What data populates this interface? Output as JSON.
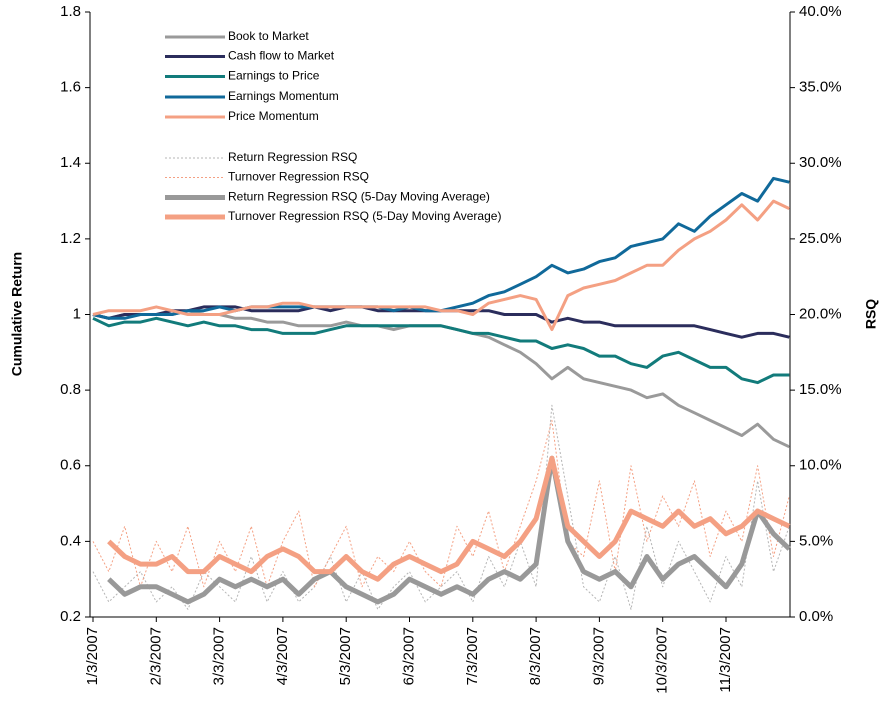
{
  "chart_data": {
    "type": "line",
    "ylabel": "Cumulative Return",
    "y2label": "RSQ",
    "legend": "upper left",
    "grid": false,
    "categories": [
      "1/3/2007",
      null,
      null,
      null,
      "2/3/2007",
      null,
      null,
      null,
      "3/3/2007",
      null,
      null,
      null,
      "4/3/2007",
      null,
      null,
      null,
      "5/3/2007",
      null,
      null,
      null,
      "6/3/2007",
      null,
      null,
      null,
      "7/3/2007",
      null,
      null,
      null,
      "8/3/2007",
      null,
      null,
      null,
      "9/3/2007",
      null,
      null,
      null,
      "10/3/2007",
      null,
      null,
      null,
      "11/3/2007",
      null,
      null,
      null,
      null
    ],
    "ylim": [
      0.2,
      1.8
    ],
    "yticks": [
      0.2,
      0.4,
      0.6,
      0.8,
      1,
      1.2,
      1.4,
      1.6,
      1.8
    ],
    "y2lim": [
      0,
      40
    ],
    "y2ticks": [
      {
        "value": 0,
        "label": "0.0%"
      },
      {
        "value": 5,
        "label": "5.0%"
      },
      {
        "value": 10,
        "label": "10.0%"
      },
      {
        "value": 15,
        "label": "15.0%"
      },
      {
        "value": 20,
        "label": "20.0%"
      },
      {
        "value": 25,
        "label": "25.0%"
      },
      {
        "value": 30,
        "label": "30.0%"
      },
      {
        "value": 35,
        "label": "35.0%"
      },
      {
        "value": 40,
        "label": "40.0%"
      }
    ],
    "series": [
      {
        "name": "Book to Market",
        "color": "#9a9a9a",
        "linewidth": 3,
        "values": [
          1.0,
          0.99,
          1.0,
          1.0,
          1.0,
          1.0,
          1.01,
          1.0,
          1.0,
          0.99,
          0.99,
          0.98,
          0.98,
          0.97,
          0.97,
          0.97,
          0.98,
          0.97,
          0.97,
          0.96,
          0.97,
          0.97,
          0.97,
          0.96,
          0.95,
          0.94,
          0.92,
          0.9,
          0.87,
          0.83,
          0.86,
          0.83,
          0.82,
          0.81,
          0.8,
          0.78,
          0.79,
          0.76,
          0.74,
          0.72,
          0.7,
          0.68,
          0.71,
          0.67,
          0.65
        ]
      },
      {
        "name": "Cash flow to Market",
        "color": "#2b2d5c",
        "linewidth": 3,
        "values": [
          1.0,
          0.99,
          1.0,
          1.0,
          1.0,
          1.01,
          1.01,
          1.02,
          1.02,
          1.02,
          1.01,
          1.01,
          1.01,
          1.01,
          1.02,
          1.01,
          1.02,
          1.02,
          1.01,
          1.01,
          1.01,
          1.01,
          1.01,
          1.01,
          1.01,
          1.01,
          1.0,
          1.0,
          1.0,
          0.98,
          0.99,
          0.98,
          0.98,
          0.97,
          0.97,
          0.97,
          0.97,
          0.97,
          0.97,
          0.96,
          0.95,
          0.94,
          0.95,
          0.95,
          0.94
        ]
      },
      {
        "name": "Earnings to Price",
        "color": "#127b7b",
        "linewidth": 3,
        "values": [
          0.99,
          0.97,
          0.98,
          0.98,
          0.99,
          0.98,
          0.97,
          0.98,
          0.97,
          0.97,
          0.96,
          0.96,
          0.95,
          0.95,
          0.95,
          0.96,
          0.97,
          0.97,
          0.97,
          0.97,
          0.97,
          0.97,
          0.97,
          0.96,
          0.95,
          0.95,
          0.94,
          0.93,
          0.93,
          0.91,
          0.92,
          0.91,
          0.89,
          0.89,
          0.87,
          0.86,
          0.89,
          0.9,
          0.88,
          0.86,
          0.86,
          0.83,
          0.82,
          0.84,
          0.84
        ]
      },
      {
        "name": "Earnings Momentum",
        "color": "#10699a",
        "linewidth": 3,
        "values": [
          1.0,
          0.99,
          0.99,
          1.0,
          1.0,
          1.0,
          1.01,
          1.01,
          1.02,
          1.01,
          1.02,
          1.02,
          1.02,
          1.02,
          1.02,
          1.02,
          1.02,
          1.02,
          1.02,
          1.01,
          1.02,
          1.01,
          1.01,
          1.02,
          1.03,
          1.05,
          1.06,
          1.08,
          1.1,
          1.13,
          1.11,
          1.12,
          1.14,
          1.15,
          1.18,
          1.19,
          1.2,
          1.24,
          1.22,
          1.26,
          1.29,
          1.32,
          1.3,
          1.36,
          1.35
        ]
      },
      {
        "name": "Price Momentum",
        "color": "#f4a083",
        "linewidth": 3,
        "values": [
          1.0,
          1.01,
          1.01,
          1.01,
          1.02,
          1.01,
          1.0,
          1.0,
          1.0,
          1.01,
          1.02,
          1.02,
          1.03,
          1.03,
          1.02,
          1.02,
          1.02,
          1.02,
          1.02,
          1.02,
          1.02,
          1.02,
          1.01,
          1.01,
          1.0,
          1.03,
          1.04,
          1.05,
          1.04,
          0.96,
          1.05,
          1.07,
          1.08,
          1.09,
          1.11,
          1.13,
          1.13,
          1.17,
          1.2,
          1.22,
          1.25,
          1.29,
          1.25,
          1.3,
          1.28
        ]
      },
      {
        "name": "Return Regression RSQ",
        "color": "#b5b5b5",
        "linewidth": 1,
        "dashed": true,
        "axis": "y2",
        "values": [
          3,
          1,
          2,
          3,
          1,
          2,
          0.5,
          3,
          2,
          1,
          4,
          1,
          3,
          1,
          2,
          4,
          1,
          3,
          0.5,
          2,
          3,
          1,
          2,
          3,
          1,
          4,
          2,
          5,
          2,
          14,
          8,
          2,
          1,
          4,
          0.5,
          6,
          2,
          5,
          3,
          1,
          4,
          2,
          9,
          3,
          6
        ]
      },
      {
        "name": "Turnover Regression RSQ",
        "color": "#f4a083",
        "linewidth": 1,
        "dashed": true,
        "axis": "y2",
        "values": [
          5,
          3,
          6,
          2,
          5,
          3,
          6,
          2,
          5,
          3,
          6,
          2,
          5,
          7,
          2,
          4,
          6,
          2,
          4,
          3,
          5,
          3,
          2,
          6,
          4,
          7,
          3,
          6,
          9,
          13,
          5,
          4,
          9,
          3,
          10,
          5,
          8,
          6,
          9,
          4,
          7,
          5,
          10,
          4,
          8
        ]
      },
      {
        "name": "Return Regression RSQ (5-Day Moving Average)",
        "color": "#999999",
        "linewidth": 5,
        "axis": "y2",
        "values": [
          null,
          2.5,
          1.5,
          2,
          2,
          1.5,
          1,
          1.5,
          2.5,
          2,
          2.5,
          2,
          2.5,
          1.5,
          2.5,
          3,
          2,
          1.5,
          1,
          1.5,
          2.5,
          2,
          1.5,
          2,
          1.5,
          2.5,
          3,
          2.5,
          3.5,
          10.5,
          5,
          3,
          2.5,
          3,
          2,
          4,
          2.5,
          3.5,
          4,
          3,
          2,
          3.5,
          7,
          5.5,
          4.5
        ]
      },
      {
        "name": "Turnover Regression RSQ (5-Day Moving Average)",
        "color": "#f4a083",
        "linewidth": 5,
        "axis": "y2",
        "values": [
          null,
          5,
          4,
          3.5,
          3.5,
          4,
          3,
          3,
          4,
          3.5,
          3,
          4,
          4.5,
          4,
          3,
          3,
          4,
          3,
          2.5,
          3.5,
          4,
          3.5,
          3,
          3.5,
          5,
          4.5,
          4,
          5,
          6.5,
          10.5,
          6,
          5,
          4,
          5,
          7,
          6.5,
          6,
          7,
          6,
          6.5,
          5.5,
          6,
          7,
          6.5,
          6
        ]
      }
    ]
  }
}
